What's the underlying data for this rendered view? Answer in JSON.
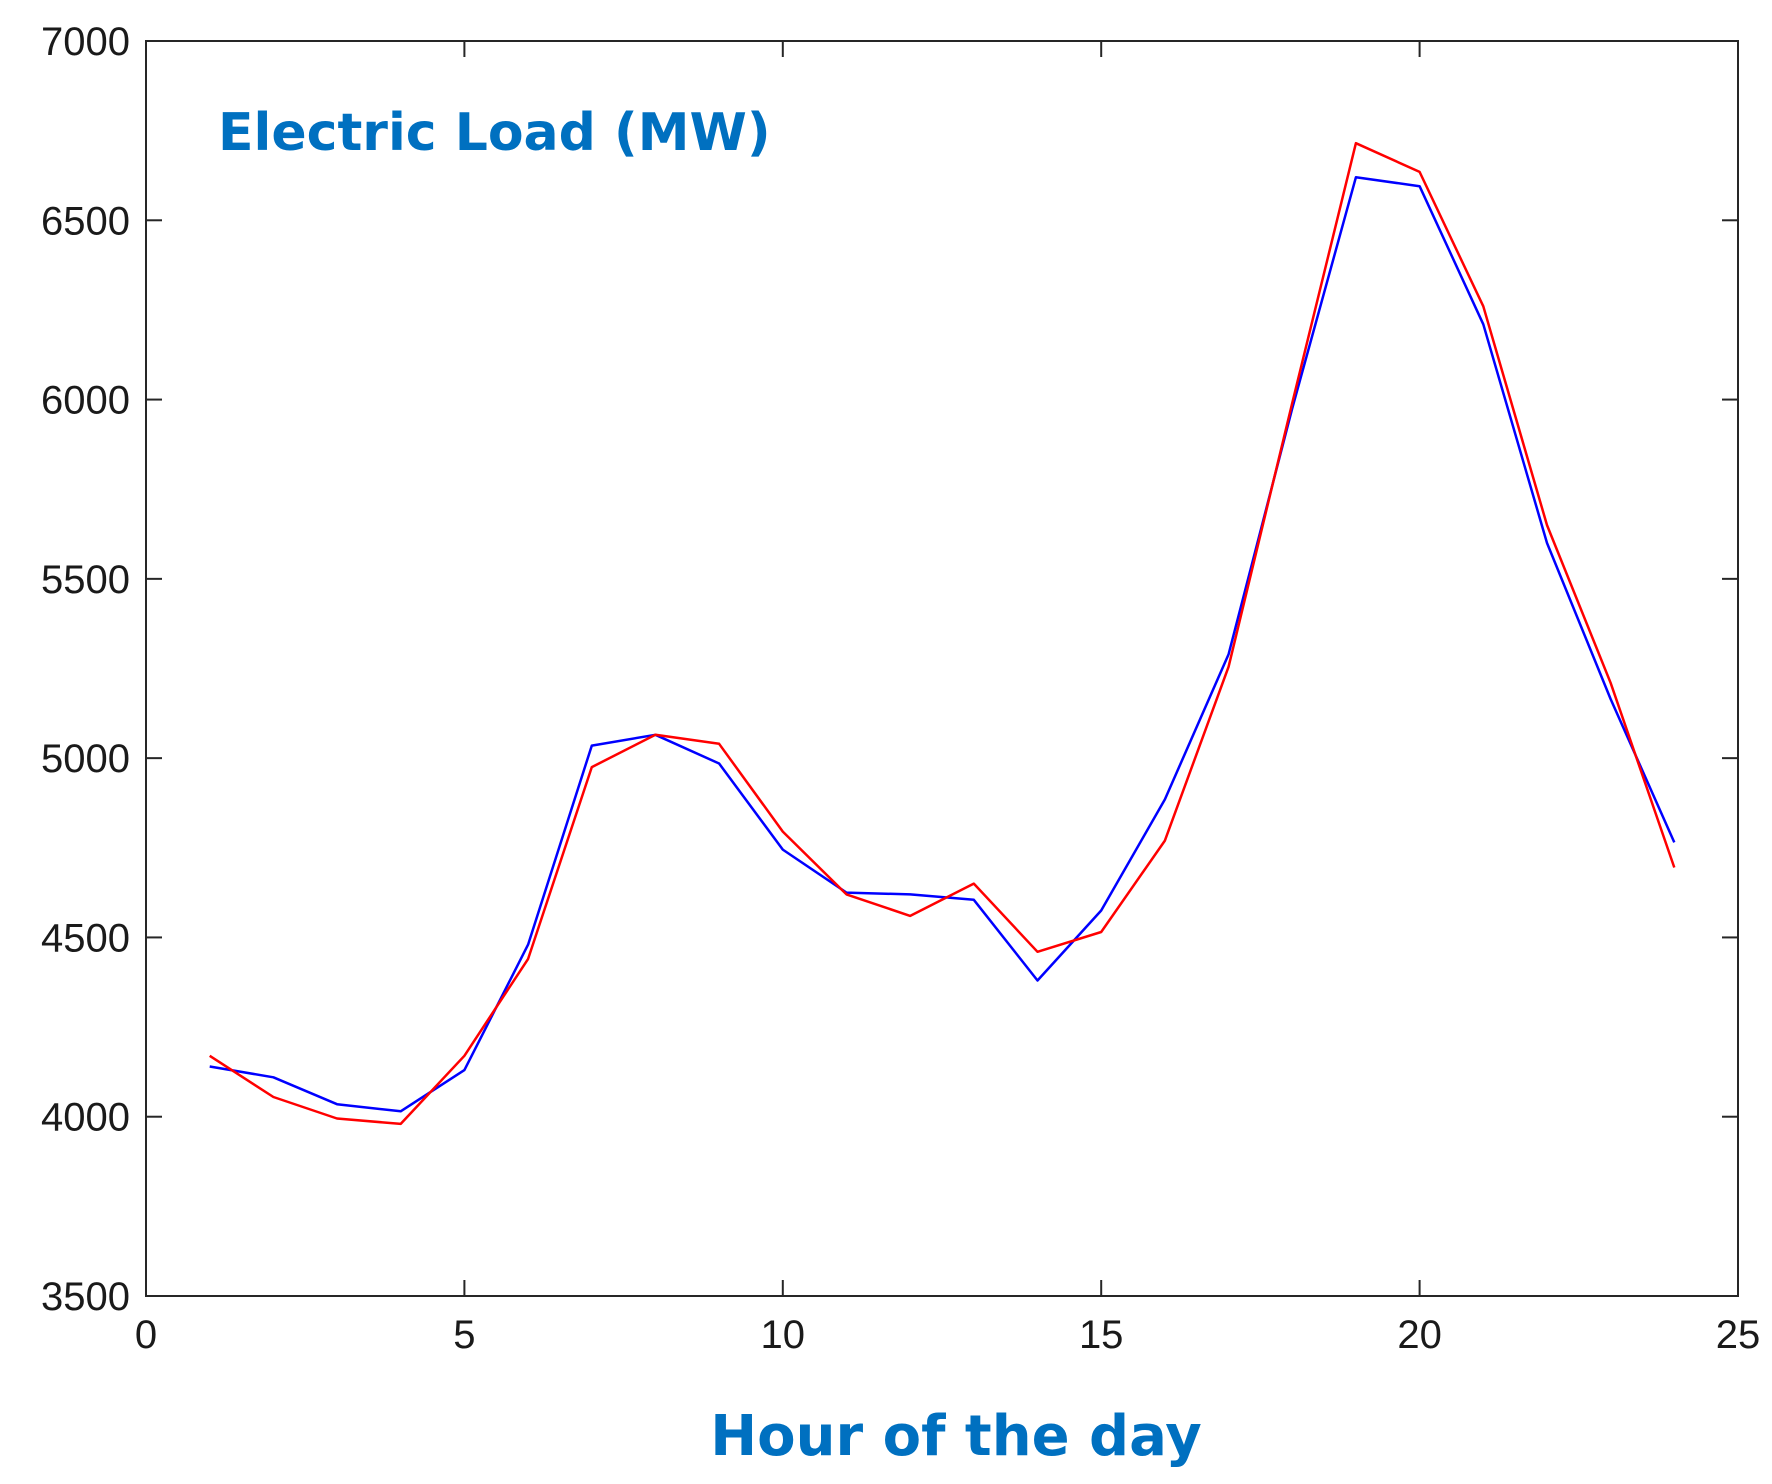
{
  "chart_data": {
    "type": "line",
    "annotation": "Electric Load (MW)",
    "xlabel": "Hour of the day",
    "ylabel": "",
    "xlim": [
      0,
      25
    ],
    "ylim": [
      3500,
      7000
    ],
    "xticks": [
      0,
      5,
      10,
      15,
      20,
      25
    ],
    "yticks": [
      3500,
      4000,
      4500,
      5000,
      5500,
      6000,
      6500,
      7000
    ],
    "grid": false,
    "legend": "none",
    "x": [
      1,
      2,
      3,
      4,
      5,
      6,
      7,
      8,
      9,
      10,
      11,
      12,
      13,
      14,
      15,
      16,
      17,
      18,
      19,
      20,
      21,
      22,
      23,
      24
    ],
    "series": [
      {
        "color": "#0000ff",
        "values": [
          4140,
          4110,
          4035,
          4015,
          4130,
          4480,
          5035,
          5065,
          4985,
          4745,
          4625,
          4620,
          4605,
          4380,
          4575,
          4885,
          5290,
          5975,
          6620,
          6595,
          6210,
          5600,
          5165,
          4765
        ]
      },
      {
        "color": "#ff0000",
        "values": [
          4170,
          4055,
          3995,
          3980,
          4170,
          4440,
          4975,
          5065,
          5040,
          4795,
          4620,
          4560,
          4650,
          4460,
          4515,
          4770,
          5255,
          5990,
          6715,
          6635,
          6260,
          5650,
          5210,
          4695
        ]
      }
    ]
  }
}
